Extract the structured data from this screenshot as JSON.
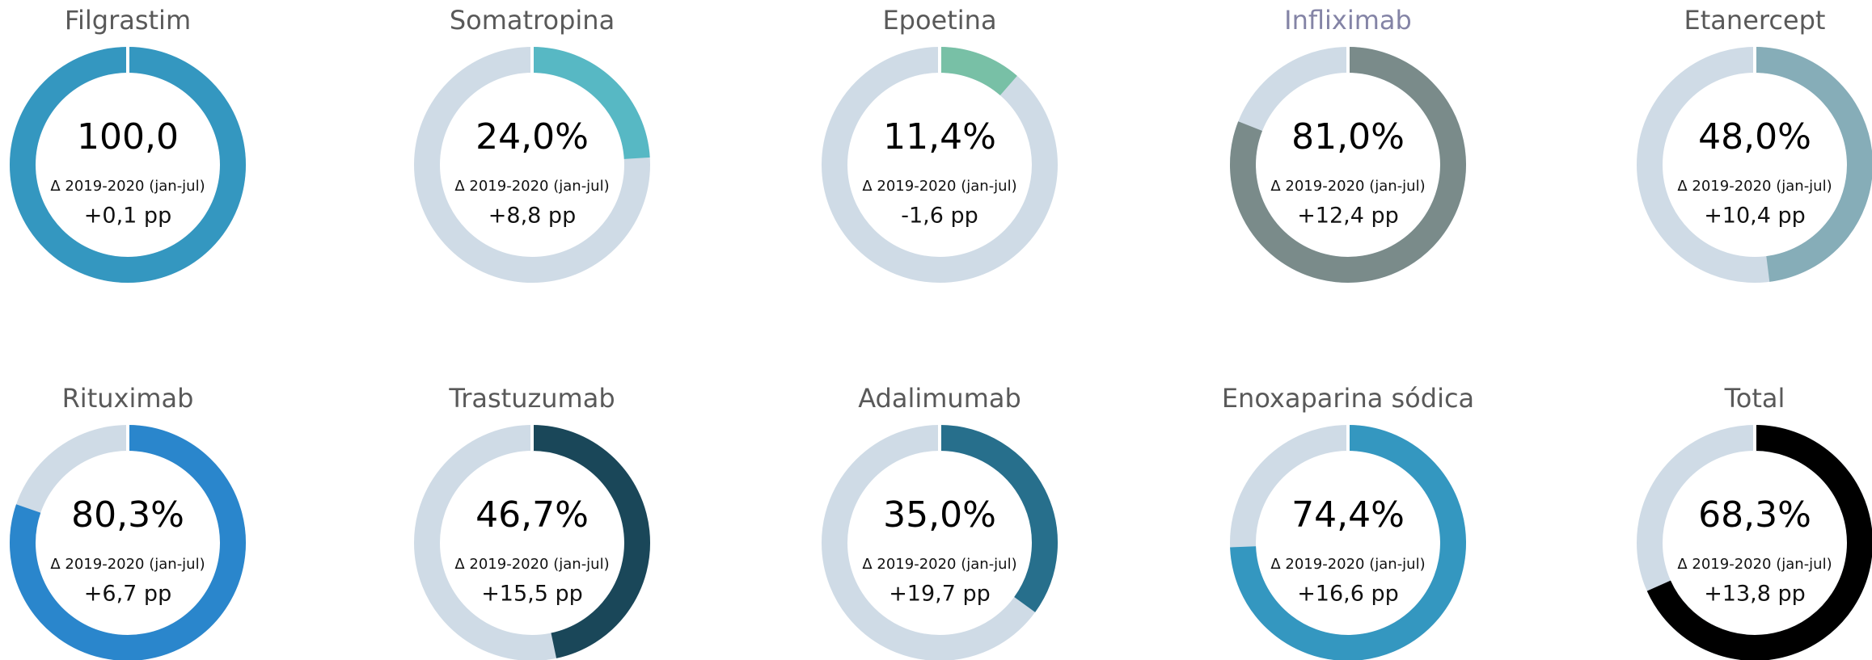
{
  "chart_data": [
    {
      "type": "donut",
      "title": "Filgrastim",
      "title_color": "#595959",
      "values": [
        100.0
      ],
      "value_labels": [
        "100,0"
      ],
      "color": "#3497c0",
      "track_color": "#cfdbe6",
      "subtitle": "Δ 2019-2020 (jan-jul)",
      "annotation": "+0,1 pp"
    },
    {
      "type": "donut",
      "title": "Somatropina",
      "title_color": "#595959",
      "values": [
        24.0
      ],
      "value_labels": [
        "24,0%"
      ],
      "color": "#57b8c4",
      "track_color": "#cfdbe6",
      "subtitle": "Δ 2019-2020 (jan-jul)",
      "annotation": "+8,8 pp"
    },
    {
      "type": "donut",
      "title": "Epoetina",
      "title_color": "#595959",
      "values": [
        11.4
      ],
      "value_labels": [
        "11,4%"
      ],
      "color": "#78c0a6",
      "track_color": "#cfdbe6",
      "subtitle": "Δ 2019-2020 (jan-jul)",
      "annotation": "-1,6 pp"
    },
    {
      "type": "donut",
      "title": "Infliximab",
      "title_color": "#8484a6",
      "values": [
        81.0
      ],
      "value_labels": [
        "81,0%"
      ],
      "color": "#7a8b8a",
      "track_color": "#cfdbe6",
      "subtitle": "Δ 2019-2020 (jan-jul)",
      "annotation": "+12,4 pp"
    },
    {
      "type": "donut",
      "title": "Etanercept",
      "title_color": "#595959",
      "values": [
        48.0
      ],
      "value_labels": [
        "48,0%"
      ],
      "color": "#86adb8",
      "track_color": "#cfdbe6",
      "subtitle": "Δ 2019-2020 (jan-jul)",
      "annotation": "+10,4 pp"
    },
    {
      "type": "donut",
      "title": "Rituximab",
      "title_color": "#595959",
      "values": [
        80.3
      ],
      "value_labels": [
        "80,3%"
      ],
      "color": "#2a86cc",
      "track_color": "#cfdbe6",
      "subtitle": "Δ 2019-2020 (jan-jul)",
      "annotation": "+6,7 pp"
    },
    {
      "type": "donut",
      "title": "Trastuzumab",
      "title_color": "#595959",
      "values": [
        46.7
      ],
      "value_labels": [
        "46,7%"
      ],
      "color": "#1a4759",
      "track_color": "#cfdbe6",
      "subtitle": "Δ 2019-2020 (jan-jul)",
      "annotation": "+15,5 pp"
    },
    {
      "type": "donut",
      "title": "Adalimumab",
      "title_color": "#595959",
      "values": [
        35.0
      ],
      "value_labels": [
        "35,0%"
      ],
      "color": "#276f8c",
      "track_color": "#cfdbe6",
      "subtitle": "Δ 2019-2020 (jan-jul)",
      "annotation": "+19,7 pp"
    },
    {
      "type": "donut",
      "title": "Enoxaparina sódica",
      "title_color": "#595959",
      "values": [
        74.4
      ],
      "value_labels": [
        "74,4%"
      ],
      "color": "#3497c0",
      "track_color": "#cfdbe6",
      "subtitle": "Δ 2019-2020 (jan-jul)",
      "annotation": "+16,6 pp"
    },
    {
      "type": "donut",
      "title": "Total",
      "title_color": "#595959",
      "values": [
        68.3
      ],
      "value_labels": [
        "68,3%"
      ],
      "color": "#000000",
      "track_color": "#cfdbe6",
      "subtitle": "Δ 2019-2020 (jan-jul)",
      "annotation": "+13,8 pp"
    }
  ]
}
